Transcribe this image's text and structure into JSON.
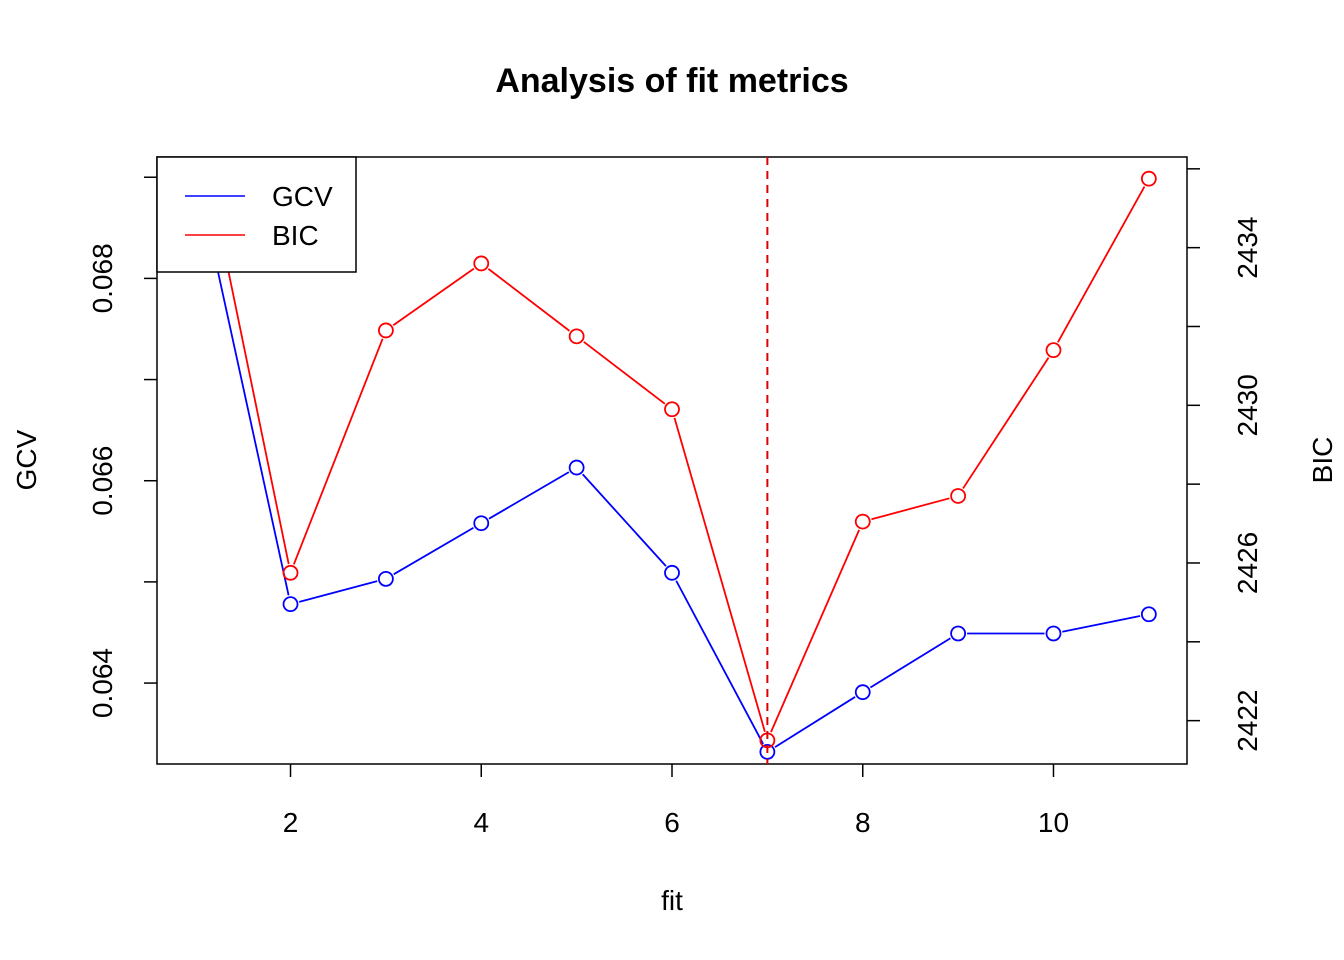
{
  "chart_data": {
    "type": "line",
    "title": "Analysis of fit metrics",
    "xlabel": "fit",
    "ylabel_left": "GCV",
    "ylabel_right": "BIC",
    "xlim": [
      0.6,
      11.4
    ],
    "ylim_left": [
      0.0632,
      0.0692
    ],
    "ylim_right": [
      2420.9,
      2436.3
    ],
    "x_ticks": [
      2,
      4,
      6,
      8,
      10
    ],
    "x_tick_labels": [
      "2",
      "4",
      "6",
      "8",
      "10"
    ],
    "y_left_ticks": [
      0.064,
      0.065,
      0.066,
      0.067,
      0.068,
      0.069
    ],
    "y_left_tick_labels": [
      "0.064",
      "",
      "0.066",
      "",
      "0.068",
      ""
    ],
    "y_right_ticks": [
      2422,
      2424,
      2426,
      2428,
      2430,
      2432,
      2434,
      2436
    ],
    "y_right_tick_labels": [
      "2422",
      "",
      "2426",
      "",
      "2430",
      "",
      "2434",
      ""
    ],
    "x": [
      1,
      2,
      3,
      4,
      5,
      6,
      7,
      8,
      9,
      10,
      11
    ],
    "series": [
      {
        "name": "GCV",
        "axis": "left",
        "color": "#0000ff",
        "values": [
          0.0691,
          0.06478,
          0.06503,
          0.06558,
          0.06613,
          0.06509,
          0.06332,
          0.06391,
          0.06449,
          0.06449,
          0.06468
        ]
      },
      {
        "name": "BIC",
        "axis": "right",
        "color": "#ff0000",
        "values": [
          2437.5,
          2425.75,
          2431.9,
          2433.6,
          2431.75,
          2429.9,
          2421.5,
          2427.05,
          2427.7,
          2431.4,
          2435.75
        ]
      }
    ],
    "reference_line": {
      "x": 7,
      "color": "#dd0000",
      "style": "dashed"
    },
    "legend_position": "top-left",
    "grid": false
  }
}
